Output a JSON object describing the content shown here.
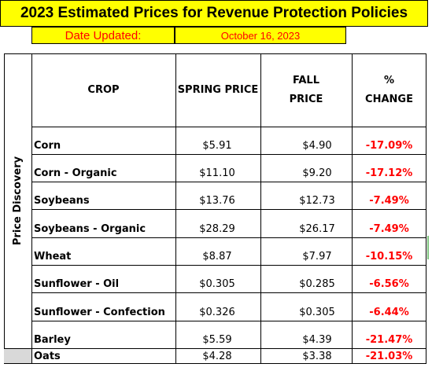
{
  "title": "2023 Estimated Prices for Revenue Protection Policies",
  "date_label": "Date Updated:",
  "date_value": "October 16, 2023",
  "side_label": "Price Discovery",
  "headers": {
    "crop": "CROP",
    "spring": "SPRING PRICE",
    "fall_line1": "FALL",
    "fall_line2": "PRICE",
    "change_line1": "%",
    "change_line2": "CHANGE"
  },
  "rows": [
    {
      "crop": "Corn",
      "spring": "$5.91",
      "fall": "$4.90",
      "change": "-17.09%"
    },
    {
      "crop": "Corn - Organic",
      "spring": "$11.10",
      "fall": "$9.20",
      "change": "-17.12%"
    },
    {
      "crop": "Soybeans",
      "spring": "$13.76",
      "fall": "$12.73",
      "change": "-7.49%"
    },
    {
      "crop": "Soybeans - Organic",
      "spring": "$28.29",
      "fall": "$26.17",
      "change": "-7.49%"
    },
    {
      "crop": "Wheat",
      "spring": "$8.87",
      "fall": "$7.97",
      "change": "-10.15%"
    },
    {
      "crop": "Sunflower - Oil",
      "spring": "$0.305",
      "fall": "$0.285",
      "change": "-6.56%"
    },
    {
      "crop": "Sunflower - Confection",
      "spring": "$0.326",
      "fall": "$0.305",
      "change": "-6.44%"
    },
    {
      "crop": "Barley",
      "spring": "$5.59",
      "fall": "$4.39",
      "change": "-21.47%"
    },
    {
      "crop": "Oats",
      "spring": "$4.28",
      "fall": "$3.38",
      "change": "-21.03%"
    }
  ],
  "colors": {
    "title_bg": "#ffff00",
    "date_text": "#ff0000",
    "change_text": "#ff0000"
  }
}
